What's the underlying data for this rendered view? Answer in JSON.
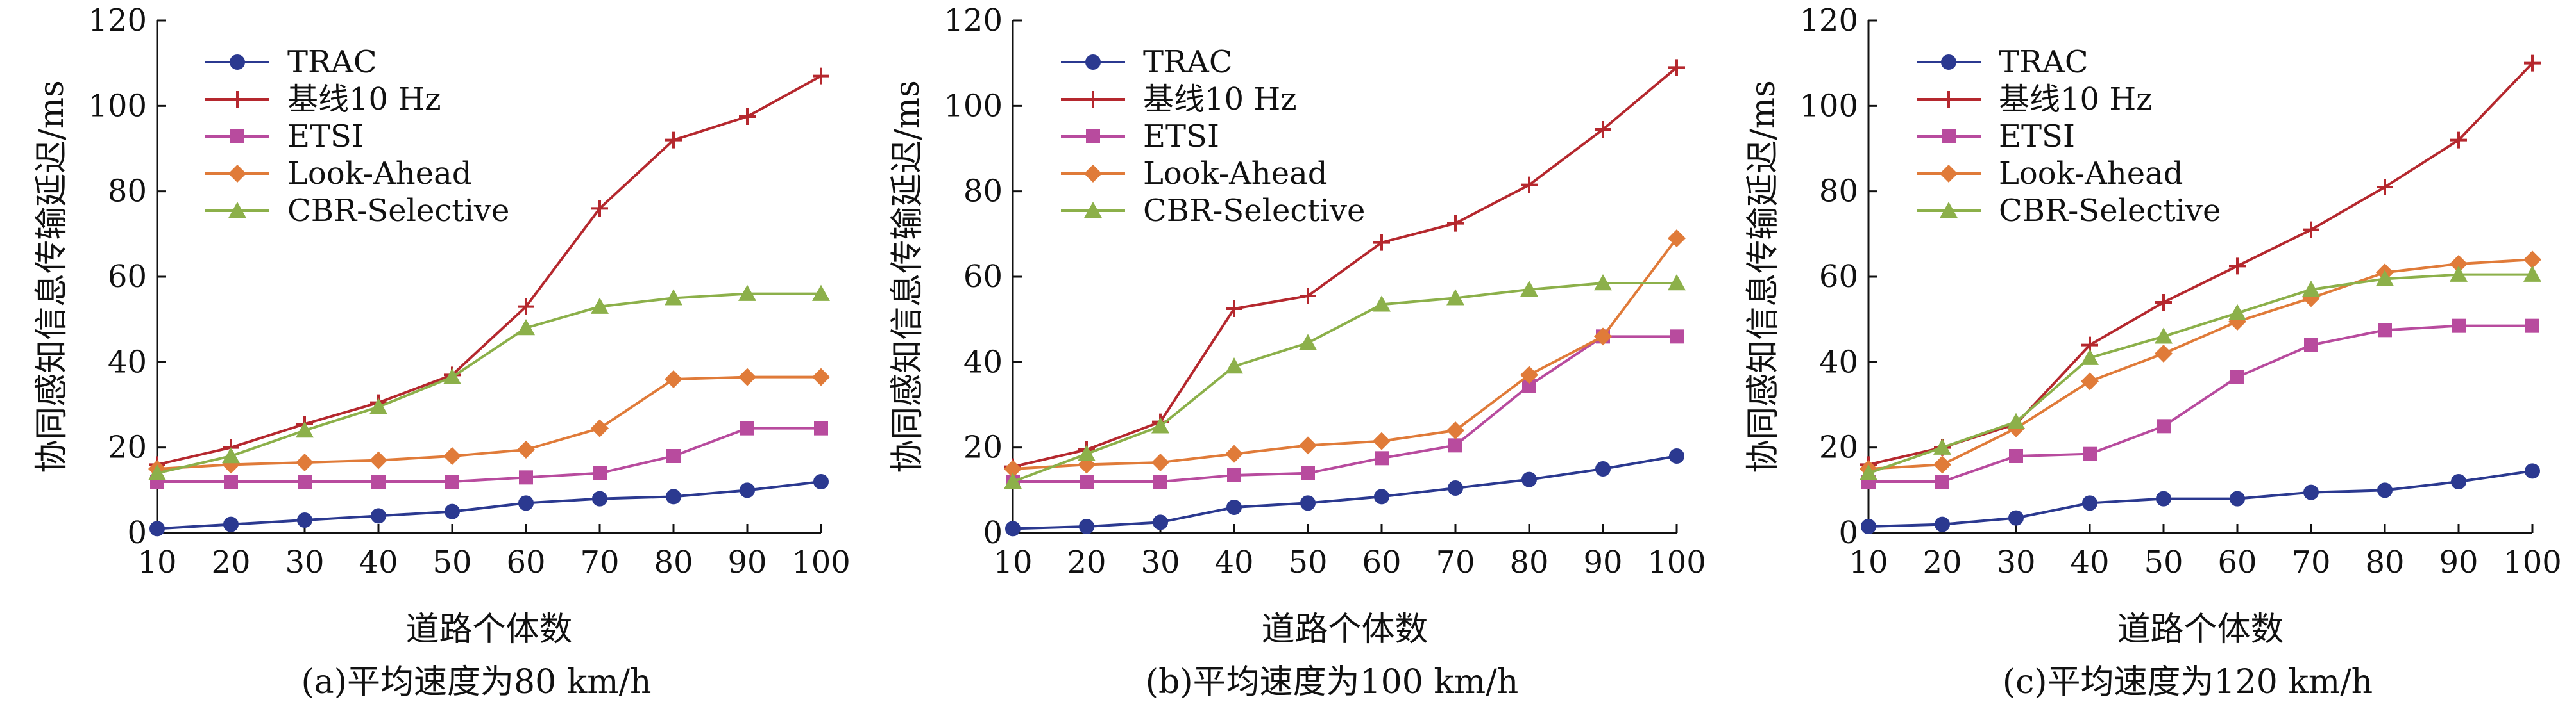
{
  "figure": {
    "captions": [
      "(a)平均速度为80 km/h",
      "(b)平均速度为100 km/h",
      "(c)平均速度为120 km/h"
    ]
  },
  "chart_data": [
    {
      "type": "line",
      "caption": "(a)平均速度为80 km/h",
      "xlabel": "道路个体数",
      "ylabel": "协同感知信息传输延迟/ms",
      "x": [
        10,
        20,
        30,
        40,
        50,
        60,
        70,
        80,
        90,
        100
      ],
      "xticks": [
        "10",
        "20",
        "30",
        "40",
        "50",
        "60",
        "70",
        "80",
        "90",
        "100"
      ],
      "yticks": [
        "0",
        "20",
        "40",
        "60",
        "80",
        "100",
        "120"
      ],
      "xlim": [
        10,
        100
      ],
      "ylim": [
        0,
        120
      ],
      "grid": false,
      "legend_position": "top-left",
      "series": [
        {
          "name": "TRAC",
          "color": "#2b3990",
          "marker": "circle",
          "values": [
            1,
            2,
            3,
            4,
            5,
            7,
            8,
            8.5,
            10,
            12
          ]
        },
        {
          "name": "基线10 Hz",
          "color": "#b5282e",
          "marker": "plus",
          "values": [
            16,
            20,
            25.5,
            30.5,
            37,
            53,
            76,
            92,
            97.5,
            107
          ]
        },
        {
          "name": "ETSI",
          "color": "#b84b9e",
          "marker": "square",
          "values": [
            12,
            12,
            12,
            12,
            12,
            13,
            14,
            18,
            24.5,
            24.5
          ]
        },
        {
          "name": "Look-Ahead",
          "color": "#e07b39",
          "marker": "diamond",
          "values": [
            15,
            16,
            16.5,
            17,
            18,
            19.5,
            24.5,
            36,
            36.5,
            36.5
          ]
        },
        {
          "name": "CBR-Selective",
          "color": "#8cb04a",
          "marker": "triangle",
          "values": [
            14,
            18,
            24,
            29.5,
            36.5,
            48,
            53,
            55,
            56,
            56
          ]
        }
      ]
    },
    {
      "type": "line",
      "caption": "(b)平均速度为100 km/h",
      "xlabel": "道路个体数",
      "ylabel": "协同感知信息传输延迟/ms",
      "x": [
        10,
        20,
        30,
        40,
        50,
        60,
        70,
        80,
        90,
        100
      ],
      "xticks": [
        "10",
        "20",
        "30",
        "40",
        "50",
        "60",
        "70",
        "80",
        "90",
        "100"
      ],
      "yticks": [
        "0",
        "20",
        "40",
        "60",
        "80",
        "100",
        "120"
      ],
      "xlim": [
        10,
        100
      ],
      "ylim": [
        0,
        120
      ],
      "grid": false,
      "legend_position": "top-left",
      "series": [
        {
          "name": "TRAC",
          "color": "#2b3990",
          "marker": "circle",
          "values": [
            1,
            1.5,
            2.5,
            6,
            7,
            8.5,
            10.5,
            12.5,
            15,
            18
          ]
        },
        {
          "name": "基线10 Hz",
          "color": "#b5282e",
          "marker": "plus",
          "values": [
            15.5,
            19.5,
            26,
            52.5,
            55.5,
            68,
            72.5,
            81.5,
            94.5,
            109
          ]
        },
        {
          "name": "ETSI",
          "color": "#b84b9e",
          "marker": "square",
          "values": [
            12,
            12,
            12,
            13.5,
            14,
            17.5,
            20.5,
            34.5,
            46,
            46
          ]
        },
        {
          "name": "Look-Ahead",
          "color": "#e07b39",
          "marker": "diamond",
          "values": [
            15,
            16,
            16.5,
            18.5,
            20.5,
            21.5,
            24,
            37,
            46,
            69
          ]
        },
        {
          "name": "CBR-Selective",
          "color": "#8cb04a",
          "marker": "triangle",
          "values": [
            12,
            18.5,
            25,
            39,
            44.5,
            53.5,
            55,
            57,
            58.5,
            58.5
          ]
        }
      ]
    },
    {
      "type": "line",
      "caption": "(c)平均速度为120 km/h",
      "xlabel": "道路个体数",
      "ylabel": "协同感知信息传输延迟/ms",
      "x": [
        10,
        20,
        30,
        40,
        50,
        60,
        70,
        80,
        90,
        100
      ],
      "xticks": [
        "10",
        "20",
        "30",
        "40",
        "50",
        "60",
        "70",
        "80",
        "90",
        "100"
      ],
      "yticks": [
        "0",
        "20",
        "40",
        "60",
        "80",
        "100",
        "120"
      ],
      "xlim": [
        10,
        100
      ],
      "ylim": [
        0,
        120
      ],
      "grid": false,
      "legend_position": "top-left",
      "series": [
        {
          "name": "TRAC",
          "color": "#2b3990",
          "marker": "circle",
          "values": [
            1.5,
            2,
            3.5,
            7,
            8,
            8,
            9.5,
            10,
            12,
            14.5
          ]
        },
        {
          "name": "基线10 Hz",
          "color": "#b5282e",
          "marker": "plus",
          "values": [
            16,
            20,
            25.5,
            44,
            54,
            62.5,
            71,
            81,
            92,
            110
          ]
        },
        {
          "name": "ETSI",
          "color": "#b84b9e",
          "marker": "square",
          "values": [
            12,
            12,
            18,
            18.5,
            25,
            36.5,
            44,
            47.5,
            48.5,
            48.5
          ]
        },
        {
          "name": "Look-Ahead",
          "color": "#e07b39",
          "marker": "diamond",
          "values": [
            15,
            16,
            24.5,
            35.5,
            42,
            49.5,
            55,
            61,
            63,
            64
          ]
        },
        {
          "name": "CBR-Selective",
          "color": "#8cb04a",
          "marker": "triangle",
          "values": [
            14,
            20,
            26,
            41,
            46,
            51.5,
            57,
            59.5,
            60.5,
            60.5
          ]
        }
      ]
    }
  ]
}
